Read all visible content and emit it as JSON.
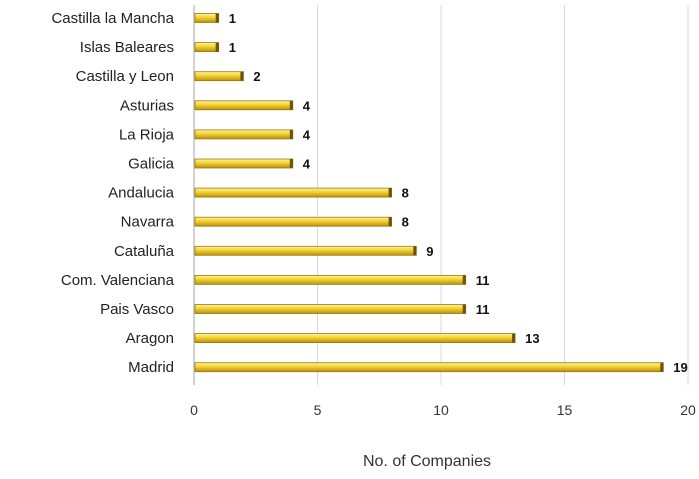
{
  "chart_data": {
    "type": "bar",
    "orientation": "horizontal",
    "categories": [
      "Castilla la Mancha",
      "Islas Baleares",
      "Castilla y Leon",
      "Asturias",
      "La Rioja",
      "Galicia",
      "Andalucia",
      "Navarra",
      "Cataluña",
      "Com. Valenciana",
      "Pais Vasco",
      "Aragon",
      "Madrid"
    ],
    "values": [
      1,
      1,
      2,
      4,
      4,
      4,
      8,
      8,
      9,
      11,
      11,
      13,
      19
    ],
    "data_labels": [
      "1",
      "1",
      "2",
      "4",
      "4",
      "4",
      "8",
      "8",
      "9",
      "11",
      "11",
      "13",
      "19"
    ],
    "xlabel": "No. of Companies",
    "ylabel": "",
    "xlim": [
      0,
      20
    ],
    "x_ticks": [
      "0",
      "5",
      "10",
      "15",
      "20"
    ],
    "grid": "vertical",
    "legend": "none",
    "bar_color": "#F2D22E",
    "bar_edge_color": "#9C7A10",
    "gridline_color": "#D9D9D9",
    "axis_color": "#A6A6A6"
  }
}
